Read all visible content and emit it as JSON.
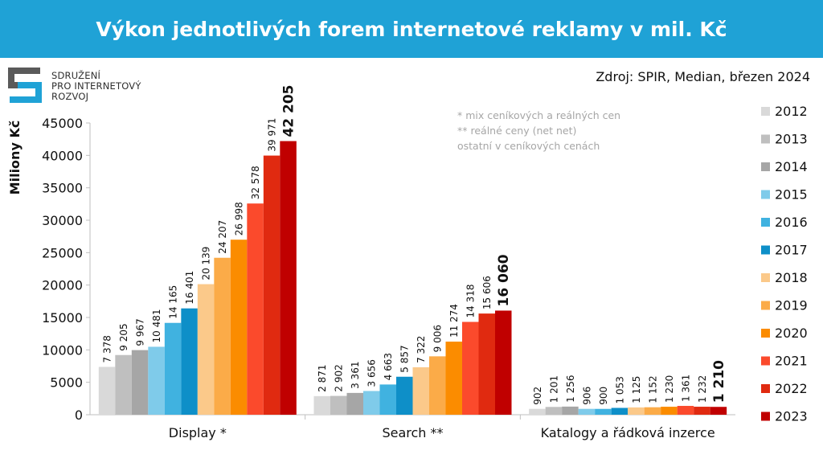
{
  "header": {
    "title": "Výkon jednotlivých forem internetové reklamy v mil. Kč"
  },
  "source": "Zdroj: SPIR, Median, březen 2024",
  "logo": {
    "lines": [
      "SDRUŽENÍ",
      "PRO INTERNETOVÝ",
      "ROZVOJ"
    ],
    "colors": {
      "dark": "#5a5a5a",
      "blue": "#1fa2d6"
    }
  },
  "notes": [
    "* mix ceníkových a reálných cen",
    "** reálné ceny (net net)",
    "ostatní v ceníkových cenách"
  ],
  "chart_data": {
    "type": "bar",
    "title": "Výkon jednotlivých forem internetové reklamy v mil. Kč",
    "xlabel": "",
    "ylabel": "Miliony Kč",
    "ylim": [
      0,
      45000
    ],
    "yticks": [
      0,
      5000,
      10000,
      15000,
      20000,
      25000,
      30000,
      35000,
      40000,
      45000
    ],
    "grid": false,
    "legend_position": "right",
    "categories": [
      "Display *",
      "Search **",
      "Katalogy a řádková inzerce"
    ],
    "series": [
      {
        "name": "2012",
        "color": "#d9d9d9",
        "values": [
          7378,
          2871,
          902
        ],
        "labels": [
          "7 378",
          "2 871",
          "902"
        ]
      },
      {
        "name": "2013",
        "color": "#bfbfbf",
        "values": [
          9205,
          2902,
          1201
        ],
        "labels": [
          "9 205",
          "2 902",
          "1 201"
        ]
      },
      {
        "name": "2014",
        "color": "#a6a6a6",
        "values": [
          9967,
          3361,
          1256
        ],
        "labels": [
          "9 967",
          "3 361",
          "1 256"
        ]
      },
      {
        "name": "2015",
        "color": "#7fcbea",
        "values": [
          10481,
          3656,
          906
        ],
        "labels": [
          "10 481",
          "3 656",
          "906"
        ]
      },
      {
        "name": "2016",
        "color": "#40b2e0",
        "values": [
          14165,
          4663,
          900
        ],
        "labels": [
          "14 165",
          "4 663",
          "900"
        ]
      },
      {
        "name": "2017",
        "color": "#0e8fc8",
        "values": [
          16401,
          5857,
          1053
        ],
        "labels": [
          "16 401",
          "5 857",
          "1 053"
        ]
      },
      {
        "name": "2018",
        "color": "#fbc98a",
        "values": [
          20139,
          7322,
          1125
        ],
        "labels": [
          "20 139",
          "7 322",
          "1 125"
        ]
      },
      {
        "name": "2019",
        "color": "#fbab48",
        "values": [
          24207,
          9006,
          1152
        ],
        "labels": [
          "24 207",
          "9 006",
          "1 152"
        ]
      },
      {
        "name": "2020",
        "color": "#fb8c00",
        "values": [
          26998,
          11274,
          1230
        ],
        "labels": [
          "26 998",
          "11 274",
          "1 230"
        ]
      },
      {
        "name": "2021",
        "color": "#fb4a2c",
        "values": [
          32578,
          14318,
          1361
        ],
        "labels": [
          "32 578",
          "14 318",
          "1 361"
        ]
      },
      {
        "name": "2022",
        "color": "#e02a10",
        "values": [
          39971,
          15606,
          1232
        ],
        "labels": [
          "39 971",
          "15 606",
          "1 232"
        ]
      },
      {
        "name": "2023",
        "color": "#c00000",
        "values": [
          42205,
          16060,
          1210
        ],
        "labels": [
          "42 205",
          "16 060",
          "1 210"
        ],
        "bold_labels": true
      }
    ]
  }
}
